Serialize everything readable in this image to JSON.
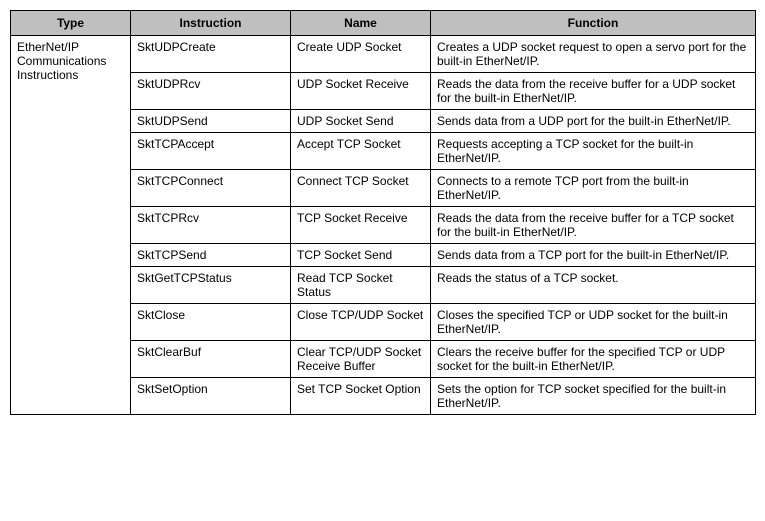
{
  "table": {
    "headers": {
      "type": "Type",
      "instruction": "Instruction",
      "name": "Name",
      "function": "Function"
    },
    "typeCell": "EtherNet/IP Communications Instructions",
    "rows": [
      {
        "instruction": "SktUDPCreate",
        "name": "Create UDP Socket",
        "function": "Creates a UDP socket request to open a servo port for the built-in EtherNet/IP."
      },
      {
        "instruction": "SktUDPRcv",
        "name": "UDP Socket Receive",
        "function": "Reads the data from the receive buffer for a UDP socket for the built-in EtherNet/IP."
      },
      {
        "instruction": "SktUDPSend",
        "name": "UDP Socket Send",
        "function": "Sends data from a UDP port for the built-in EtherNet/IP."
      },
      {
        "instruction": "SktTCPAccept",
        "name": "Accept TCP Socket",
        "function": "Requests accepting a TCP socket for the built-in EtherNet/IP."
      },
      {
        "instruction": "SktTCPConnect",
        "name": "Connect TCP Socket",
        "function": "Connects to a remote TCP port from the built-in EtherNet/IP."
      },
      {
        "instruction": "SktTCPRcv",
        "name": "TCP Socket Receive",
        "function": "Reads the data from the receive buffer for a TCP socket for the built-in EtherNet/IP."
      },
      {
        "instruction": "SktTCPSend",
        "name": "TCP Socket Send",
        "function": "Sends data from a TCP port for the built-in EtherNet/IP."
      },
      {
        "instruction": "SktGetTCPStatus",
        "name": "Read TCP Socket Status",
        "function": "Reads the status of a TCP socket."
      },
      {
        "instruction": "SktClose",
        "name": "Close TCP/UDP Socket",
        "function": "Closes the specified TCP or UDP socket for the built-in EtherNet/IP."
      },
      {
        "instruction": "SktClearBuf",
        "name": "Clear TCP/UDP Socket Receive Buffer",
        "function": "Clears the receive buffer for the specified TCP or UDP socket for the built-in EtherNet/IP."
      },
      {
        "instruction": "SktSetOption",
        "name": "Set TCP Socket Option",
        "function": "Sets the option for TCP socket specified for the built-in EtherNet/IP."
      }
    ]
  }
}
